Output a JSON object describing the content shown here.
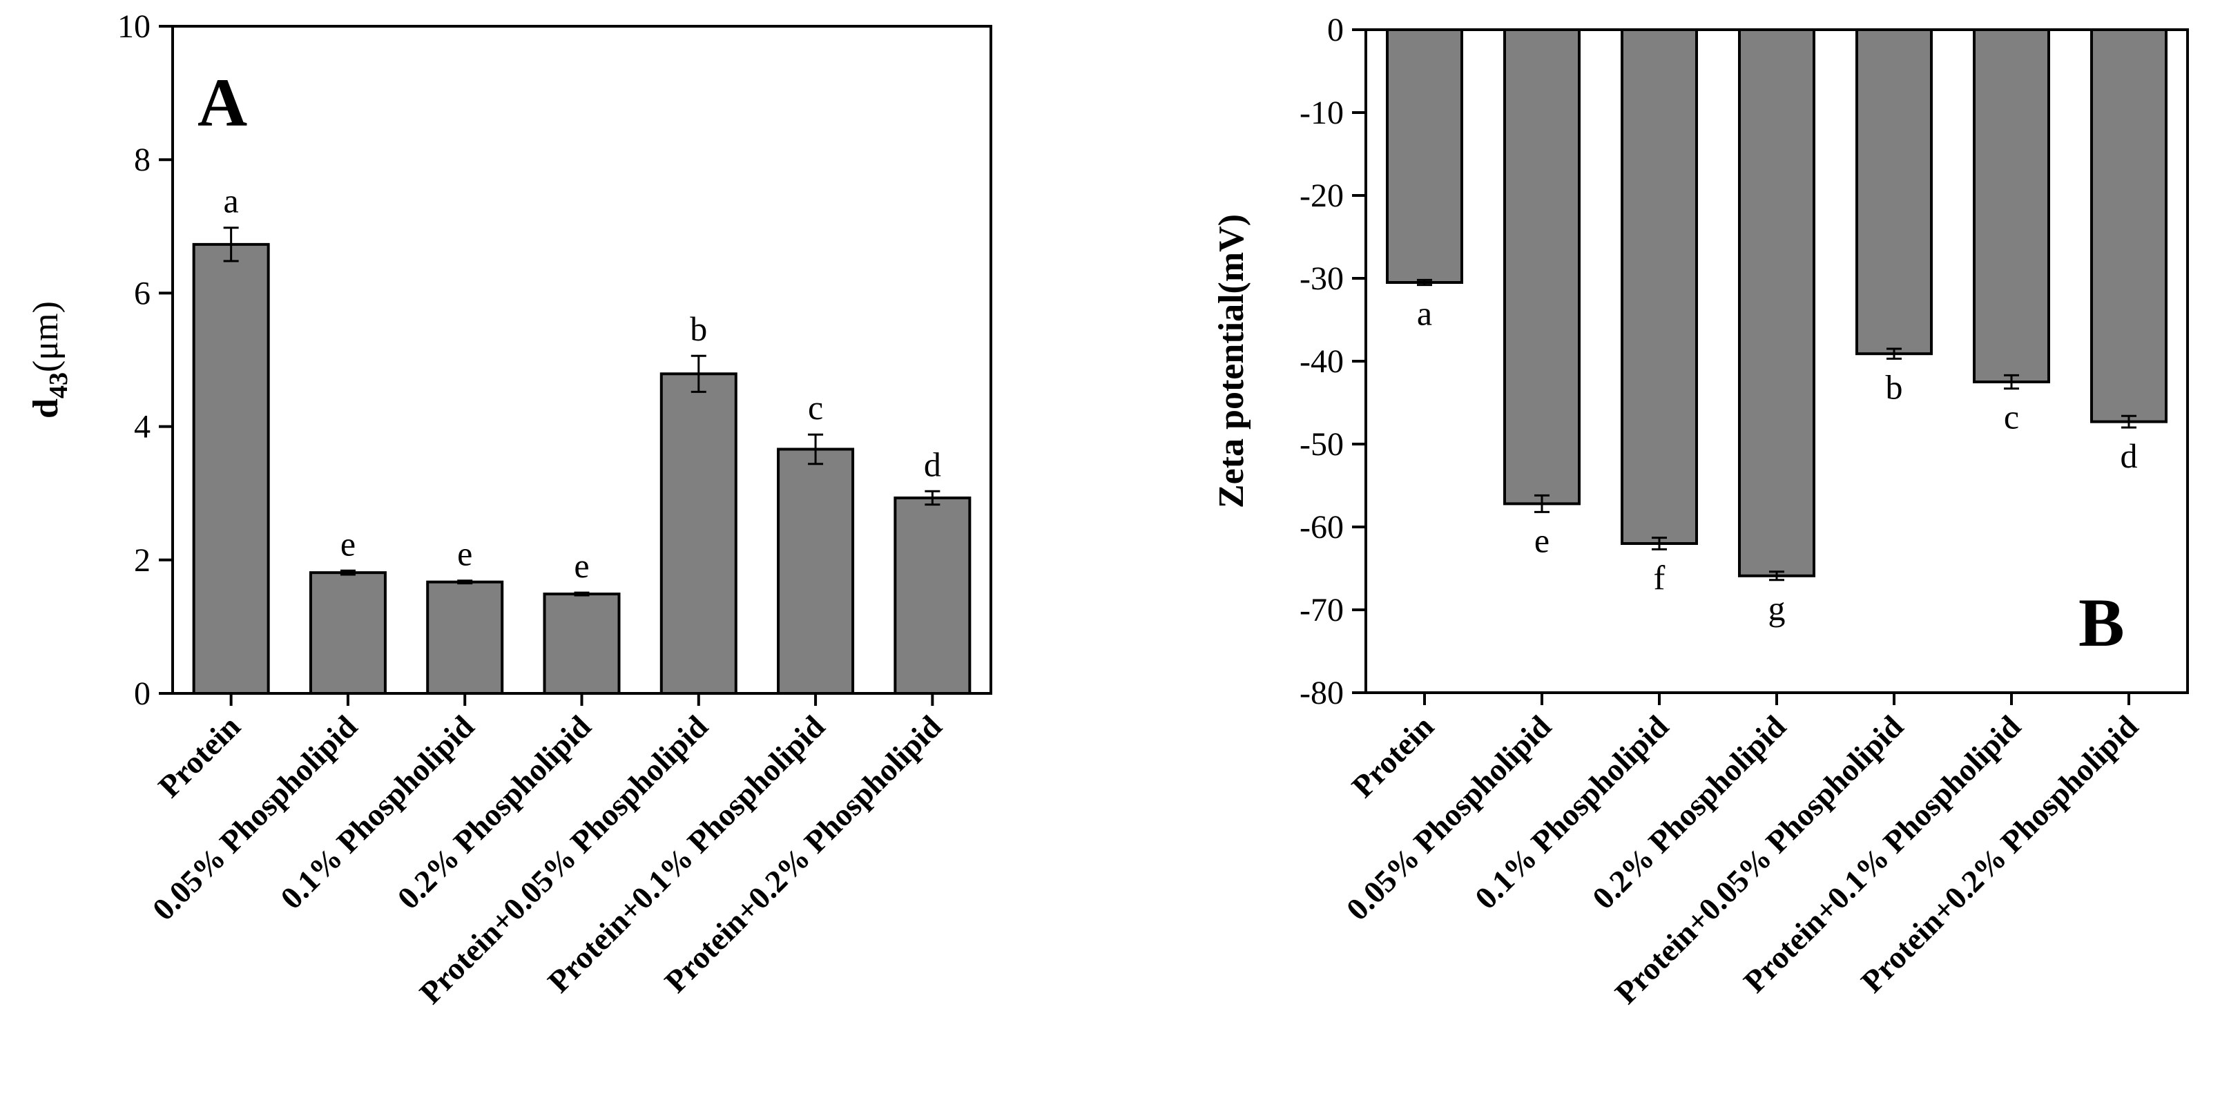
{
  "colors": {
    "bar_fill": "#808080",
    "bar_stroke": "#000000",
    "axis": "#000000",
    "background": "#ffffff"
  },
  "chart_data": [
    {
      "type": "bar",
      "panel_label": "A",
      "title": "",
      "xlabel": "",
      "ylabel_main": "d",
      "ylabel_sub": "43",
      "ylabel_unit": "(μm)",
      "ylim": [
        0,
        10
      ],
      "yticks": [
        0,
        2,
        4,
        6,
        8,
        10
      ],
      "ytick_labels": [
        "0",
        "2",
        "4",
        "6",
        "8",
        "10"
      ],
      "categories": [
        "Protein",
        "0.05% Phospholipid",
        "0.1% Phospholipid",
        "0.2% Phospholipid",
        "Protein+0.05% Phospholipid",
        "Protein+0.1% Phospholipid",
        "Protein+0.2% Phospholipid"
      ],
      "values": [
        6.73,
        1.81,
        1.67,
        1.49,
        4.79,
        3.66,
        2.93
      ],
      "errors": [
        0.25,
        0.03,
        0.02,
        0.02,
        0.27,
        0.22,
        0.1
      ],
      "significance": [
        "a",
        "e",
        "e",
        "e",
        "b",
        "c",
        "d"
      ]
    },
    {
      "type": "bar",
      "panel_label": "B",
      "title": "",
      "xlabel": "",
      "ylabel": "Zeta potential(mV)",
      "ylim": [
        -80,
        0
      ],
      "yticks": [
        0,
        -10,
        -20,
        -30,
        -40,
        -50,
        -60,
        -70,
        -80
      ],
      "ytick_labels": [
        "0",
        "-10",
        "-20",
        "-30",
        "-40",
        "-50",
        "-60",
        "-70",
        "-80"
      ],
      "categories": [
        "Protein",
        "0.05% Phospholipid",
        "0.1% Phospholipid",
        "0.2% Phospholipid",
        "Protein+0.05% Phospholipid",
        "Protein+0.1% Phospholipid",
        "Protein+0.2% Phospholipid"
      ],
      "values": [
        -30.5,
        -57.2,
        -62.0,
        -65.9,
        -39.1,
        -42.5,
        -47.3
      ],
      "errors": [
        0.3,
        1.0,
        0.7,
        0.5,
        0.6,
        0.8,
        0.7
      ],
      "significance": [
        "a",
        "e",
        "f",
        "g",
        "b",
        "c",
        "d"
      ]
    }
  ]
}
